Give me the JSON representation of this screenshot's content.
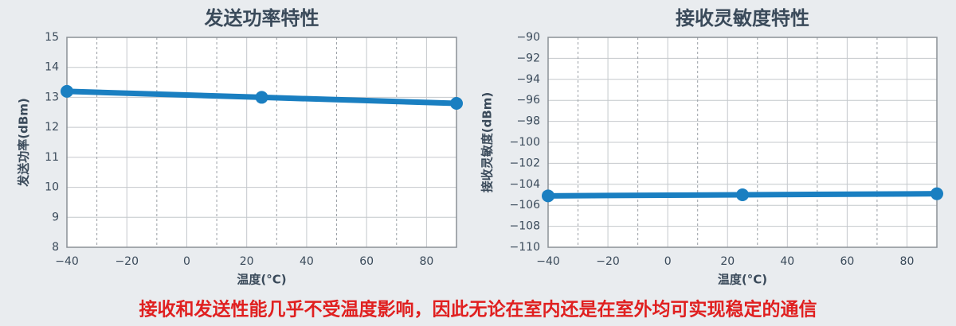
{
  "chart_data": [
    {
      "type": "line",
      "title": "发送功率特性",
      "x_label": "温度(°C)",
      "y_label": "发送功率(dBm)",
      "x": [
        -40,
        25,
        90
      ],
      "values": [
        13.2,
        13.0,
        12.8
      ],
      "color": "#1a7fc1",
      "xlim": [
        -40,
        90
      ],
      "xticks": [
        {
          "value": -40,
          "label": "−40"
        },
        {
          "value": -20,
          "label": "−20"
        },
        0,
        20,
        40,
        60,
        80
      ],
      "ylim": [
        8,
        15
      ],
      "yticks": [
        8,
        9,
        10,
        11,
        12,
        13,
        14,
        15
      ],
      "grid": true
    },
    {
      "type": "line",
      "title": "接收灵敏度特性",
      "x_label": "温度(°C)",
      "y_label": "接收灵敏度(dBm)",
      "x": [
        -40,
        25,
        90
      ],
      "values": [
        -105.1,
        -105.0,
        -104.9
      ],
      "color": "#1a7fc1",
      "xlim": [
        -40,
        90
      ],
      "xticks": [
        {
          "value": -40,
          "label": "−40"
        },
        {
          "value": -20,
          "label": "−20"
        },
        0,
        20,
        40,
        60,
        80
      ],
      "ylim": [
        -110,
        -90
      ],
      "yticks": [
        {
          "value": -110,
          "label": "−110"
        },
        {
          "value": -108,
          "label": "−108"
        },
        {
          "value": -106,
          "label": "−106"
        },
        {
          "value": -104,
          "label": "−104"
        },
        {
          "value": -102,
          "label": "−102"
        },
        {
          "value": -100,
          "label": "−100"
        },
        {
          "value": -98,
          "label": "−98"
        },
        {
          "value": -96,
          "label": "−96"
        },
        {
          "value": -94,
          "label": "−94"
        },
        {
          "value": -92,
          "label": "−92"
        },
        {
          "value": -90,
          "label": "−90"
        }
      ],
      "grid": true
    }
  ],
  "caption": "接收和发送性能几乎不受温度影响，因此无论在室内还是在室外均可实现稳定的通信"
}
